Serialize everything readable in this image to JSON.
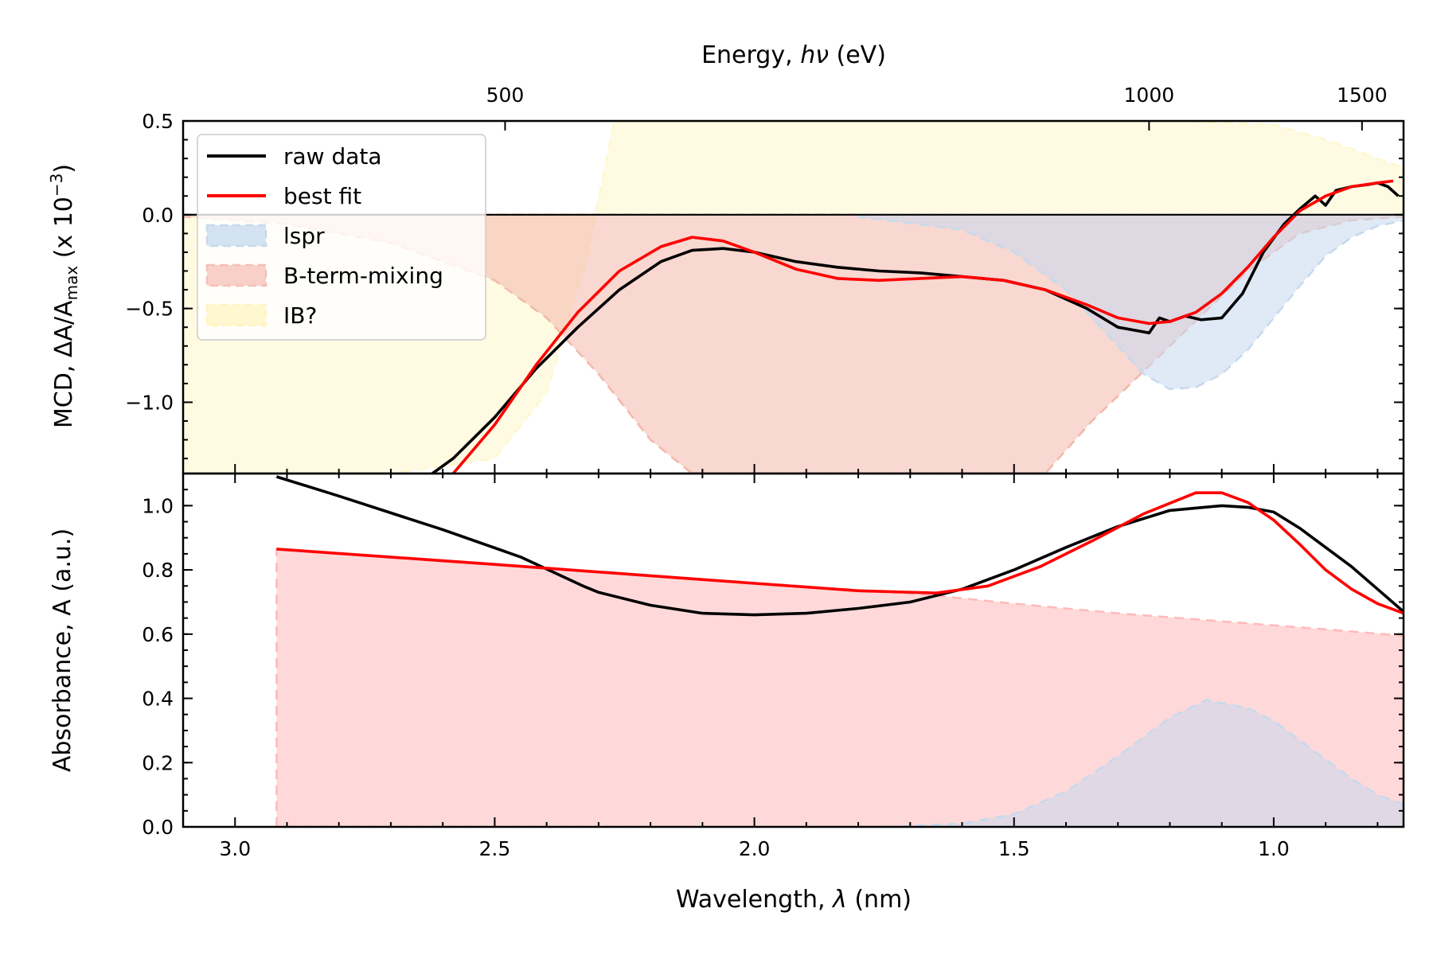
{
  "chart_data": [
    {
      "type": "area",
      "panel": "top",
      "title": "Energy, hν (eV)",
      "ylabel_main": "MCD, ΔA/A",
      "ylabel_sub": "max",
      "ylabel_suffix": " (x 10",
      "ylabel_exp": "−3",
      "ylabel_close": ")",
      "xlim": [
        3.1,
        0.75
      ],
      "ylim": [
        -1.38,
        0.5
      ],
      "yticks": [
        0.5,
        0.0,
        -0.5,
        -1.0
      ],
      "ytick_labels": [
        "0.5",
        "0.0",
        "−0.5",
        "−1.0"
      ],
      "top_axis": {
        "label": "Energy, hν (eV)",
        "ticks": [
          2.48,
          1.24,
          0.83
        ],
        "tick_labels": [
          "500",
          "1000",
          "1500"
        ]
      },
      "zero_line": 0.0,
      "legend_position": "top-left",
      "legend": [
        {
          "label": "raw data",
          "kind": "line",
          "color": "#000000"
        },
        {
          "label": "best fit",
          "kind": "line",
          "color": "#ff0000"
        },
        {
          "label": "lspr",
          "kind": "patch",
          "color": "#c6d9ee"
        },
        {
          "label": "B-term-mixing",
          "kind": "patch",
          "color": "#f5c0b6"
        },
        {
          "label": "IB?",
          "kind": "patch",
          "color": "#fff4c2"
        }
      ],
      "series": [
        {
          "name": "IB?",
          "kind": "fill",
          "color": "#fff7cc",
          "x": [
            3.1,
            2.9,
            2.7,
            2.5,
            2.4,
            2.32,
            2.27,
            2.2,
            2.0,
            1.8,
            1.6,
            1.4,
            1.2,
            1.0,
            0.9,
            0.8,
            0.75
          ],
          "y": [
            -1.38,
            -1.38,
            -1.38,
            -1.3,
            -0.95,
            -0.2,
            0.5,
            0.5,
            0.5,
            0.5,
            0.5,
            0.5,
            0.5,
            0.48,
            0.4,
            0.3,
            0.25
          ]
        },
        {
          "name": "B-term-mixing",
          "kind": "fill",
          "color": "#f2b8aa",
          "x": [
            3.1,
            2.9,
            2.7,
            2.5,
            2.4,
            2.3,
            2.2,
            2.12,
            1.9,
            1.7,
            1.5,
            1.44,
            1.35,
            1.2,
            1.05,
            0.95,
            0.85,
            0.75
          ],
          "y": [
            -0.01,
            -0.05,
            -0.15,
            -0.35,
            -0.55,
            -0.85,
            -1.2,
            -1.38,
            -1.38,
            -1.38,
            -1.38,
            -1.38,
            -1.1,
            -0.7,
            -0.3,
            -0.1,
            -0.03,
            -0.01
          ]
        },
        {
          "name": "lspr",
          "kind": "fill",
          "color": "#c6d9ee",
          "x": [
            1.8,
            1.6,
            1.5,
            1.4,
            1.3,
            1.25,
            1.2,
            1.15,
            1.1,
            1.05,
            1.0,
            0.95,
            0.9,
            0.85,
            0.8,
            0.75
          ],
          "y": [
            -0.01,
            -0.08,
            -0.2,
            -0.4,
            -0.7,
            -0.85,
            -0.93,
            -0.92,
            -0.85,
            -0.72,
            -0.55,
            -0.38,
            -0.22,
            -0.12,
            -0.06,
            -0.03
          ]
        },
        {
          "name": "raw data",
          "kind": "line",
          "color": "#000000",
          "x": [
            2.62,
            2.58,
            2.5,
            2.42,
            2.34,
            2.26,
            2.18,
            2.12,
            2.06,
            2.0,
            1.92,
            1.84,
            1.76,
            1.68,
            1.6,
            1.52,
            1.44,
            1.36,
            1.3,
            1.26,
            1.24,
            1.22,
            1.2,
            1.17,
            1.14,
            1.1,
            1.06,
            1.02,
            0.98,
            0.95,
            0.92,
            0.9,
            0.88,
            0.85,
            0.82,
            0.8,
            0.78,
            0.76
          ],
          "y": [
            -1.38,
            -1.3,
            -1.08,
            -0.82,
            -0.6,
            -0.4,
            -0.25,
            -0.19,
            -0.18,
            -0.2,
            -0.25,
            -0.28,
            -0.3,
            -0.31,
            -0.33,
            -0.35,
            -0.4,
            -0.5,
            -0.6,
            -0.62,
            -0.63,
            -0.55,
            -0.57,
            -0.54,
            -0.56,
            -0.55,
            -0.42,
            -0.2,
            -0.05,
            0.03,
            0.1,
            0.05,
            0.13,
            0.15,
            0.16,
            0.17,
            0.15,
            0.1
          ]
        },
        {
          "name": "best fit",
          "kind": "line",
          "color": "#ff0000",
          "x": [
            2.58,
            2.5,
            2.42,
            2.34,
            2.26,
            2.18,
            2.12,
            2.06,
            2.0,
            1.92,
            1.84,
            1.76,
            1.68,
            1.6,
            1.52,
            1.44,
            1.36,
            1.3,
            1.24,
            1.2,
            1.15,
            1.1,
            1.05,
            1.0,
            0.95,
            0.9,
            0.85,
            0.8,
            0.77
          ],
          "y": [
            -1.38,
            -1.12,
            -0.8,
            -0.52,
            -0.3,
            -0.17,
            -0.12,
            -0.14,
            -0.2,
            -0.29,
            -0.34,
            -0.35,
            -0.34,
            -0.33,
            -0.35,
            -0.4,
            -0.48,
            -0.55,
            -0.58,
            -0.57,
            -0.52,
            -0.42,
            -0.28,
            -0.12,
            0.02,
            0.1,
            0.15,
            0.17,
            0.18
          ]
        }
      ]
    },
    {
      "type": "area",
      "panel": "bottom",
      "xlabel": "Wavelength, λ (nm)",
      "ylabel": "Absorbance, A (a.u.)",
      "xlim": [
        3.1,
        0.75
      ],
      "ylim": [
        0.0,
        1.1
      ],
      "xticks": [
        3.0,
        2.5,
        2.0,
        1.5,
        1.0
      ],
      "xtick_labels": [
        "3.0",
        "2.5",
        "2.0",
        "1.5",
        "1.0"
      ],
      "yticks": [
        0.0,
        0.2,
        0.4,
        0.6,
        0.8,
        1.0
      ],
      "ytick_labels": [
        "0.0",
        "0.2",
        "0.4",
        "0.6",
        "0.8",
        "1.0"
      ],
      "series": [
        {
          "name": "B-term-mixing",
          "kind": "fill",
          "color": "#ffb9b9",
          "x": [
            2.92,
            2.5,
            2.0,
            1.65,
            1.5,
            1.3,
            1.1,
            0.9,
            0.75
          ],
          "y": [
            0.865,
            0.817,
            0.76,
            0.72,
            0.695,
            0.665,
            0.64,
            0.615,
            0.595
          ]
        },
        {
          "name": "lspr",
          "kind": "fill",
          "color": "#c6d9ee",
          "x": [
            1.75,
            1.6,
            1.5,
            1.4,
            1.3,
            1.2,
            1.13,
            1.05,
            1.0,
            0.95,
            0.9,
            0.85,
            0.8,
            0.75
          ],
          "y": [
            0.0,
            0.01,
            0.04,
            0.11,
            0.22,
            0.34,
            0.395,
            0.37,
            0.33,
            0.27,
            0.21,
            0.15,
            0.1,
            0.07
          ]
        },
        {
          "name": "raw data",
          "kind": "line",
          "color": "#000000",
          "x": [
            2.92,
            2.8,
            2.6,
            2.45,
            2.33,
            2.3,
            2.2,
            2.1,
            2.0,
            1.9,
            1.8,
            1.7,
            1.6,
            1.5,
            1.4,
            1.3,
            1.2,
            1.1,
            1.05,
            1.0,
            0.95,
            0.9,
            0.85,
            0.8,
            0.75
          ],
          "y": [
            1.09,
            1.03,
            0.925,
            0.84,
            0.75,
            0.73,
            0.69,
            0.665,
            0.66,
            0.665,
            0.68,
            0.7,
            0.74,
            0.8,
            0.87,
            0.935,
            0.985,
            1.0,
            0.995,
            0.98,
            0.93,
            0.87,
            0.81,
            0.74,
            0.67
          ]
        },
        {
          "name": "best fit",
          "kind": "line",
          "color": "#ff0000",
          "x": [
            2.92,
            2.5,
            2.0,
            1.8,
            1.65,
            1.55,
            1.45,
            1.35,
            1.25,
            1.15,
            1.1,
            1.05,
            1.0,
            0.95,
            0.9,
            0.85,
            0.8,
            0.75
          ],
          "y": [
            0.865,
            0.817,
            0.758,
            0.735,
            0.728,
            0.75,
            0.81,
            0.89,
            0.975,
            1.04,
            1.04,
            1.01,
            0.955,
            0.88,
            0.8,
            0.74,
            0.695,
            0.665
          ]
        }
      ]
    }
  ]
}
